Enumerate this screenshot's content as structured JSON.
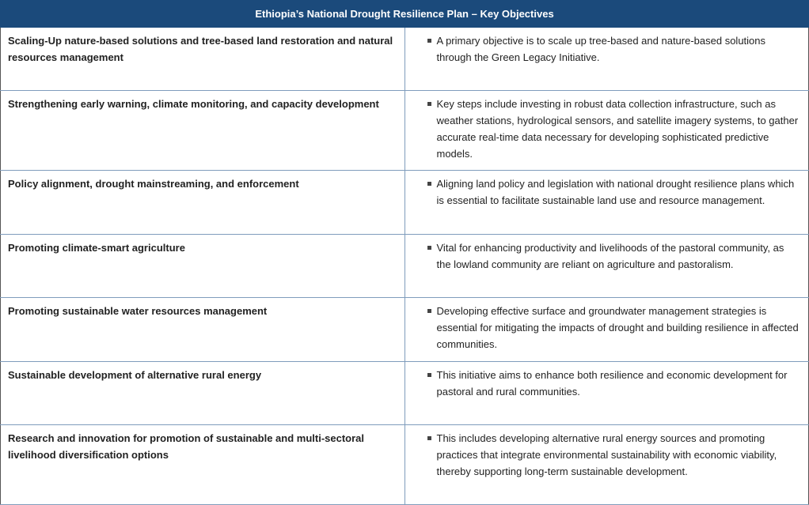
{
  "table": {
    "title": "Ethiopia’s National Drought Resilience Plan – Key Objectives",
    "rows": [
      {
        "objective": "Scaling-Up nature-based solutions and tree-based land restoration and natural resources management",
        "description": "A primary objective is to scale up tree-based and nature-based solutions through the Green Legacy Initiative."
      },
      {
        "objective": "Strengthening early warning, climate monitoring, and capacity development",
        "description": "Key steps include investing in robust data collection infrastructure, such as weather stations, hydrological sensors, and satellite imagery systems, to gather accurate real-time data necessary for developing sophisticated predictive models."
      },
      {
        "objective": "Policy alignment, drought mainstreaming, and enforcement",
        "description": "Aligning land policy and legislation with national drought resilience plans which is essential to facilitate sustainable land use and resource management."
      },
      {
        "objective": "Promoting climate-smart agriculture",
        "description": "Vital for enhancing productivity and livelihoods of the pastoral community, as the lowland community are reliant on agriculture and pastoralism."
      },
      {
        "objective": "Promoting sustainable water resources management",
        "description": "Developing effective surface and groundwater management strategies is essential for mitigating the impacts of drought and building resilience in affected communities."
      },
      {
        "objective": "Sustainable development of alternative rural energy",
        "description": "This initiative aims to enhance both resilience and economic development for pastoral and rural communities."
      },
      {
        "objective": "Research and innovation for promotion of sustainable and multi-sectoral livelihood diversification options",
        "description": "This includes developing alternative rural energy sources and promoting practices that integrate environmental sustainability with economic viability, thereby supporting long-term sustainable development."
      }
    ]
  },
  "colors": {
    "header_bg": "#1b4a7b",
    "border": "#7f9cbc"
  }
}
